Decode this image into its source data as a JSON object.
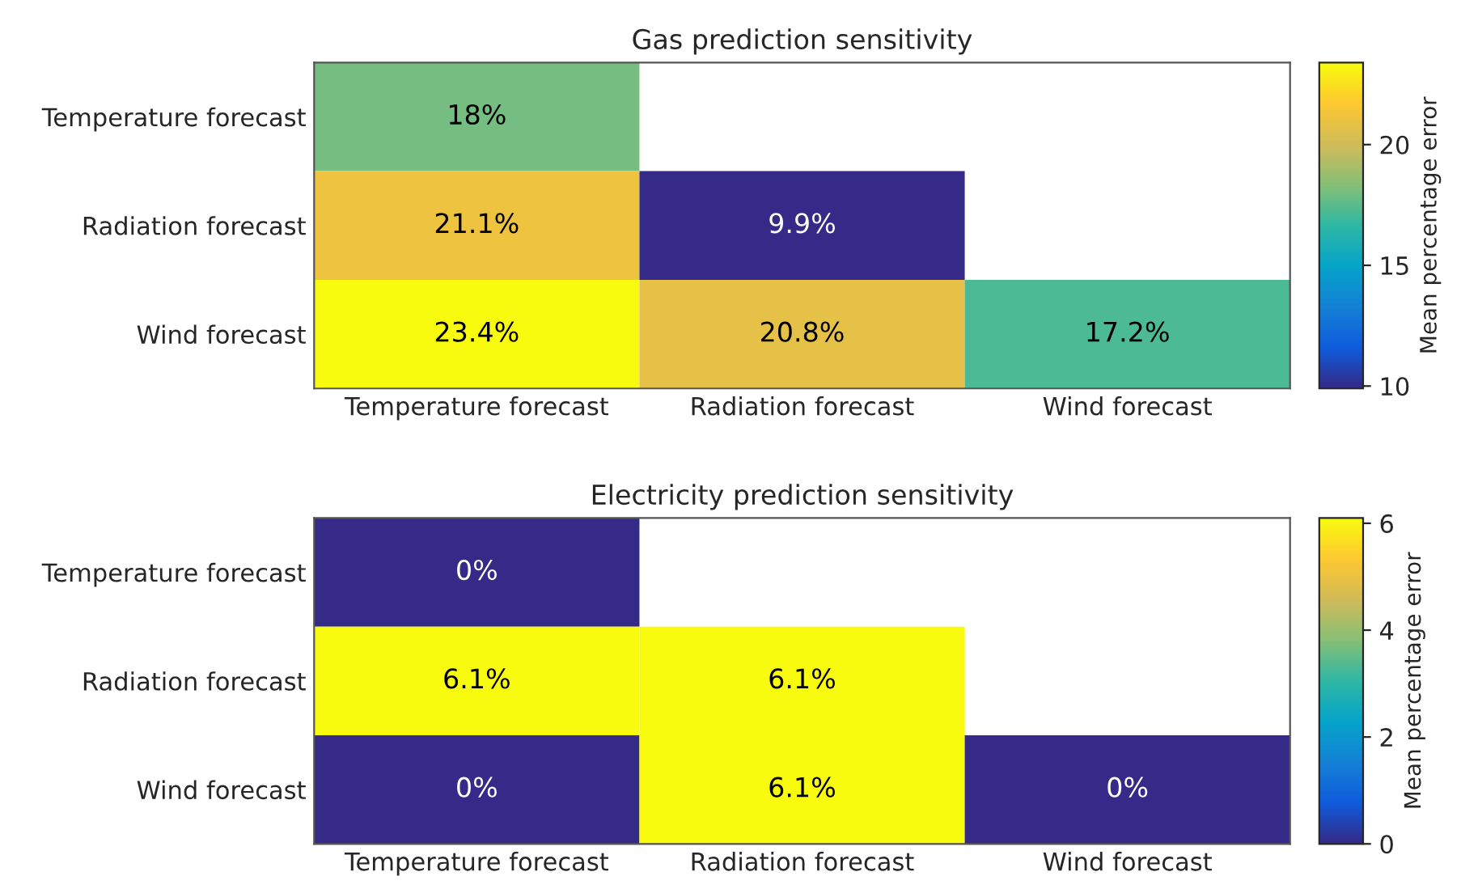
{
  "chart_data": [
    {
      "type": "heatmap",
      "title": "Gas prediction sensitivity",
      "clabel": "Mean percentage error",
      "categories": [
        "Temperature forecast",
        "Radiation forecast",
        "Wind forecast"
      ],
      "y_categories": [
        "Temperature forecast",
        "Radiation forecast",
        "Wind forecast"
      ],
      "cells": [
        [
          18,
          null,
          null
        ],
        [
          21.1,
          9.9,
          null
        ],
        [
          23.4,
          20.8,
          17.2
        ]
      ],
      "cell_labels": [
        [
          "18%",
          null,
          null
        ],
        [
          "21.1%",
          "9.9%",
          null
        ],
        [
          "23.4%",
          "20.8%",
          "17.2%"
        ]
      ],
      "clim": [
        9.9,
        23.4
      ],
      "cticks": [
        10,
        15,
        20
      ]
    },
    {
      "type": "heatmap",
      "title": "Electricity prediction sensitivity",
      "clabel": "Mean percentage error",
      "categories": [
        "Temperature forecast",
        "Radiation forecast",
        "Wind forecast"
      ],
      "y_categories": [
        "Temperature forecast",
        "Radiation forecast",
        "Wind forecast"
      ],
      "cells": [
        [
          0,
          null,
          null
        ],
        [
          6.1,
          6.1,
          null
        ],
        [
          0,
          6.1,
          0
        ]
      ],
      "cell_labels": [
        [
          "0%",
          null,
          null
        ],
        [
          "6.1%",
          "6.1%",
          null
        ],
        [
          "0%",
          "6.1%",
          "0%"
        ]
      ],
      "clim": [
        0,
        6.1
      ],
      "cticks": [
        0,
        2,
        4,
        6
      ]
    }
  ]
}
